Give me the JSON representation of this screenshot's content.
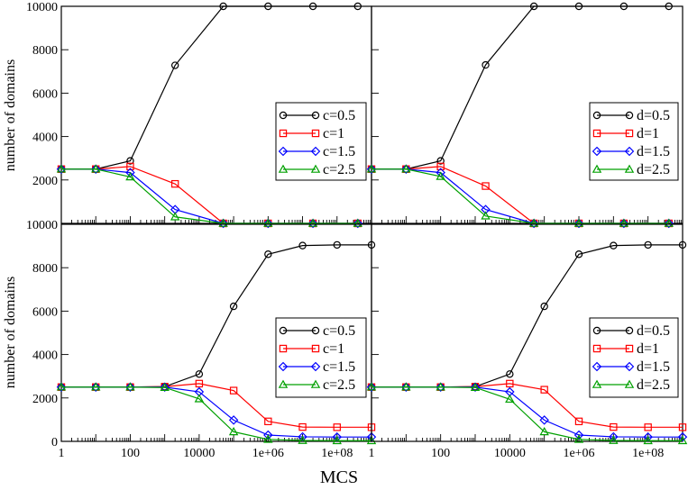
{
  "xlabel": "MCS",
  "ylabel": "number of domains",
  "x_tick_labels": [
    "1",
    "100",
    "10000",
    "1e+06",
    "1e+08"
  ],
  "colors": {
    "black": "#000000",
    "red": "#ff0000",
    "blue": "#0000ff",
    "green": "#00a000"
  },
  "chart_data": [
    {
      "type": "line",
      "panel": "top-left",
      "xscale": "log",
      "xlim": [
        1,
        1000000000.0
      ],
      "ylim": [
        0,
        10000
      ],
      "yticks": [
        2000,
        4000,
        6000,
        8000,
        10000
      ],
      "ytick_labels": [
        "2000",
        "4000",
        "6000",
        "8000",
        "10000"
      ],
      "legend_position": "center-right",
      "x": [
        1,
        10,
        100,
        2000,
        50000,
        1000000,
        20000000,
        400000000
      ],
      "series": [
        {
          "name": "c=0.5",
          "color": "black",
          "marker": "circle",
          "y": [
            2500,
            2500,
            2880,
            7280,
            10000,
            10000,
            10000,
            10000
          ]
        },
        {
          "name": "c=1",
          "color": "red",
          "marker": "square",
          "y": [
            2500,
            2500,
            2620,
            1820,
            0,
            0,
            0,
            0
          ]
        },
        {
          "name": "c=1.5",
          "color": "blue",
          "marker": "diamond",
          "y": [
            2500,
            2500,
            2340,
            640,
            0,
            0,
            0,
            0
          ]
        },
        {
          "name": "c=2.5",
          "color": "green",
          "marker": "triangle",
          "y": [
            2500,
            2500,
            2140,
            300,
            0,
            0,
            0,
            0
          ]
        }
      ]
    },
    {
      "type": "line",
      "panel": "top-right",
      "xscale": "log",
      "xlim": [
        1,
        1000000000.0
      ],
      "ylim": [
        0,
        10000
      ],
      "yticks": [],
      "ytick_labels": [],
      "legend_position": "center-right",
      "x": [
        1,
        10,
        100,
        2000,
        50000,
        1000000,
        20000000,
        400000000
      ],
      "series": [
        {
          "name": "d=0.5",
          "color": "black",
          "marker": "circle",
          "y": [
            2500,
            2500,
            2880,
            7300,
            10000,
            10000,
            10000,
            10000
          ]
        },
        {
          "name": "d=1",
          "color": "red",
          "marker": "square",
          "y": [
            2500,
            2500,
            2620,
            1720,
            0,
            0,
            0,
            0
          ]
        },
        {
          "name": "d=1.5",
          "color": "blue",
          "marker": "diamond",
          "y": [
            2500,
            2500,
            2340,
            640,
            0,
            0,
            0,
            0
          ]
        },
        {
          "name": "d=2.5",
          "color": "green",
          "marker": "triangle",
          "y": [
            2500,
            2500,
            2160,
            340,
            0,
            0,
            0,
            0
          ]
        }
      ]
    },
    {
      "type": "line",
      "panel": "bottom-left",
      "xscale": "log",
      "xlim": [
        1,
        1000000000.0
      ],
      "ylim": [
        0,
        10000
      ],
      "yticks": [
        0,
        2000,
        4000,
        6000,
        8000,
        10000
      ],
      "ytick_labels": [
        "0",
        "2000",
        "4000",
        "6000",
        "8000",
        "10000"
      ],
      "legend_position": "bottom-right",
      "x": [
        1,
        10,
        100,
        1000,
        10000,
        100000,
        1000000,
        10000000,
        100000000,
        1000000000
      ],
      "series": [
        {
          "name": "c=0.5",
          "color": "black",
          "marker": "circle",
          "y": [
            2500,
            2500,
            2500,
            2520,
            3100,
            6220,
            8620,
            9020,
            9050,
            9050
          ]
        },
        {
          "name": "c=1",
          "color": "red",
          "marker": "square",
          "y": [
            2500,
            2500,
            2500,
            2520,
            2660,
            2340,
            920,
            660,
            650,
            650
          ]
        },
        {
          "name": "c=1.5",
          "color": "blue",
          "marker": "diamond",
          "y": [
            2500,
            2500,
            2500,
            2500,
            2280,
            980,
            290,
            210,
            200,
            200
          ]
        },
        {
          "name": "c=2.5",
          "color": "green",
          "marker": "triangle",
          "y": [
            2500,
            2500,
            2500,
            2480,
            1960,
            440,
            90,
            40,
            30,
            30
          ]
        }
      ]
    },
    {
      "type": "line",
      "panel": "bottom-right",
      "xscale": "log",
      "xlim": [
        1,
        1000000000.0
      ],
      "ylim": [
        0,
        10000
      ],
      "yticks": [],
      "ytick_labels": [],
      "legend_position": "bottom-right",
      "x": [
        1,
        10,
        100,
        1000,
        10000,
        100000,
        1000000,
        10000000,
        100000000,
        1000000000
      ],
      "series": [
        {
          "name": "d=0.5",
          "color": "black",
          "marker": "circle",
          "y": [
            2500,
            2500,
            2500,
            2520,
            3100,
            6220,
            8620,
            9020,
            9050,
            9050
          ]
        },
        {
          "name": "d=1",
          "color": "red",
          "marker": "square",
          "y": [
            2500,
            2500,
            2500,
            2520,
            2660,
            2380,
            920,
            660,
            650,
            650
          ]
        },
        {
          "name": "d=1.5",
          "color": "blue",
          "marker": "diamond",
          "y": [
            2500,
            2500,
            2500,
            2500,
            2280,
            980,
            290,
            210,
            200,
            200
          ]
        },
        {
          "name": "d=2.5",
          "color": "green",
          "marker": "triangle",
          "y": [
            2500,
            2500,
            2500,
            2480,
            1940,
            440,
            90,
            40,
            30,
            30
          ]
        }
      ]
    }
  ]
}
